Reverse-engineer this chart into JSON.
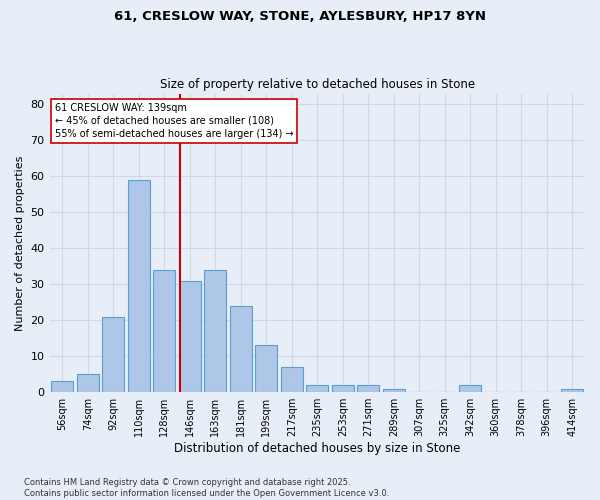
{
  "title1": "61, CRESLOW WAY, STONE, AYLESBURY, HP17 8YN",
  "title2": "Size of property relative to detached houses in Stone",
  "xlabel": "Distribution of detached houses by size in Stone",
  "ylabel": "Number of detached properties",
  "categories": [
    "56sqm",
    "74sqm",
    "92sqm",
    "110sqm",
    "128sqm",
    "146sqm",
    "163sqm",
    "181sqm",
    "199sqm",
    "217sqm",
    "235sqm",
    "253sqm",
    "271sqm",
    "289sqm",
    "307sqm",
    "325sqm",
    "342sqm",
    "360sqm",
    "378sqm",
    "396sqm",
    "414sqm"
  ],
  "values": [
    3,
    5,
    21,
    59,
    34,
    31,
    34,
    24,
    13,
    7,
    2,
    2,
    2,
    1,
    0,
    0,
    2,
    0,
    0,
    0,
    1
  ],
  "bar_color": "#aec6e8",
  "bar_edge_color": "#5a9fd4",
  "vline_color": "#cc0000",
  "vline_x_index": 4.61,
  "annotation_text": "61 CRESLOW WAY: 139sqm\n← 45% of detached houses are smaller (108)\n55% of semi-detached houses are larger (134) →",
  "annotation_box_color": "#ffffff",
  "annotation_box_edge": "#cc0000",
  "ylim": [
    0,
    83
  ],
  "yticks": [
    0,
    10,
    20,
    30,
    40,
    50,
    60,
    70,
    80
  ],
  "grid_color": "#d0d8e8",
  "bg_color": "#e8eef8",
  "footer": "Contains HM Land Registry data © Crown copyright and database right 2025.\nContains public sector information licensed under the Open Government Licence v3.0."
}
